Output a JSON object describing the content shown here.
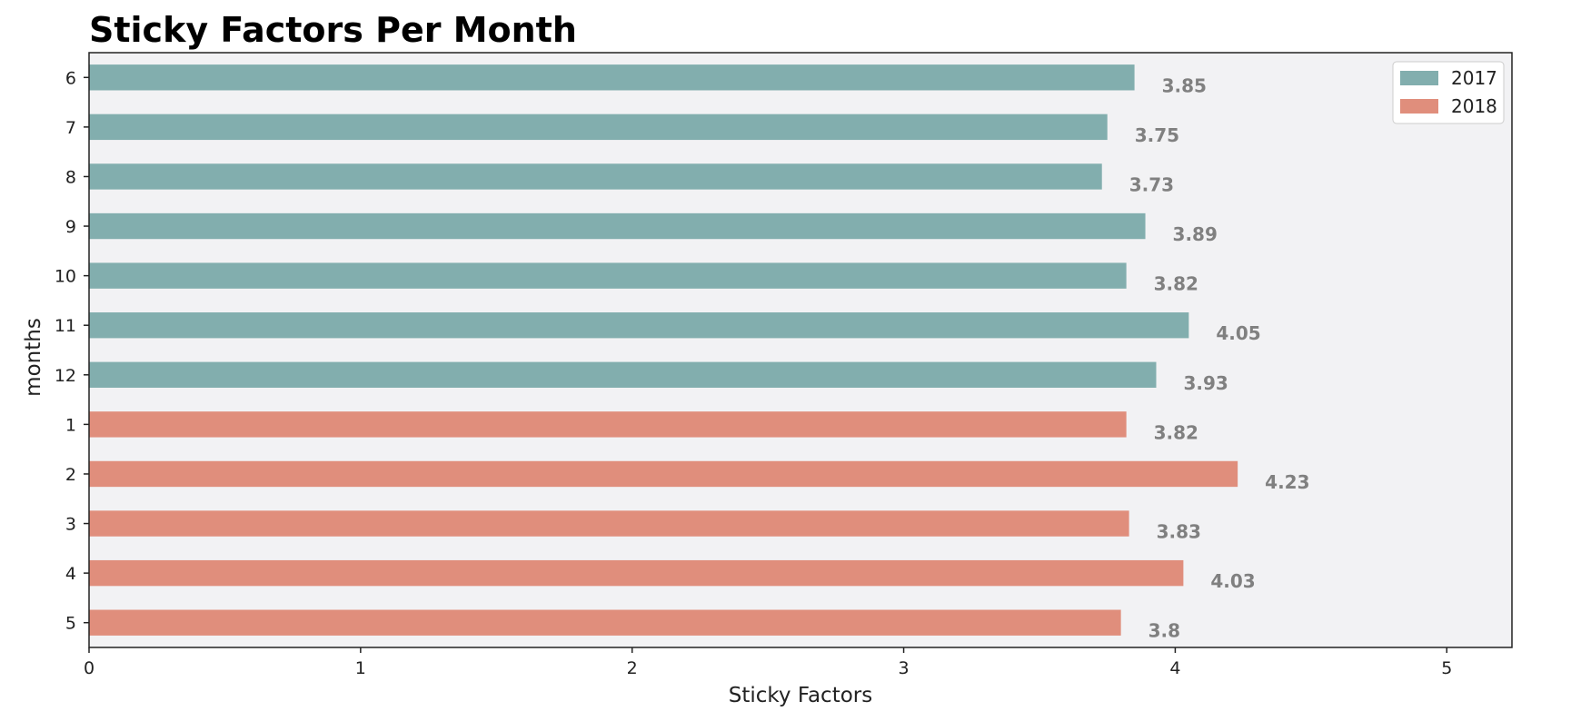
{
  "chart_data": {
    "type": "bar",
    "orientation": "horizontal",
    "title": "Sticky Factors Per Month",
    "xlabel": "Sticky Factors",
    "ylabel": "months",
    "xlim": [
      0,
      5.24
    ],
    "xticks": [
      "0",
      "1",
      "2",
      "3",
      "4",
      "5"
    ],
    "categories": [
      "6",
      "7",
      "8",
      "9",
      "10",
      "11",
      "12",
      "1",
      "2",
      "3",
      "4",
      "5"
    ],
    "values": [
      3.85,
      3.75,
      3.73,
      3.89,
      3.82,
      4.05,
      3.93,
      3.82,
      4.23,
      3.83,
      4.03,
      3.8
    ],
    "value_labels": [
      "3.85",
      "3.75",
      "3.73",
      "3.89",
      "3.82",
      "4.05",
      "3.93",
      "3.82",
      "4.23",
      "3.83",
      "4.03",
      "3.8"
    ],
    "series_index": [
      0,
      0,
      0,
      0,
      0,
      0,
      0,
      1,
      1,
      1,
      1,
      1
    ],
    "series": [
      {
        "name": "2017",
        "color": "#82aeae"
      },
      {
        "name": "2018",
        "color": "#e08e7c"
      }
    ],
    "grid": false,
    "legend_position": "top-right",
    "plot_background": "#f2f2f4"
  }
}
